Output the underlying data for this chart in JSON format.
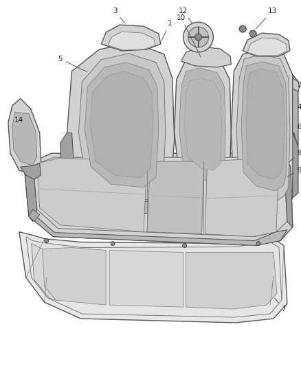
{
  "background_color": "#ffffff",
  "fig_width": 4.38,
  "fig_height": 5.33,
  "dpi": 100,
  "seat_fill": "#d2d2d2",
  "seat_edge": "#555555",
  "inner_fill": "#b8b8b8",
  "dark_fill": "#a0a0a0",
  "light_fill": "#e0e0e0",
  "mat_fill": "#e8e8e8",
  "label_fontsize": 7.5,
  "label_color": "#222222",
  "leader_color": "#555555",
  "leader_lw": 0.7
}
